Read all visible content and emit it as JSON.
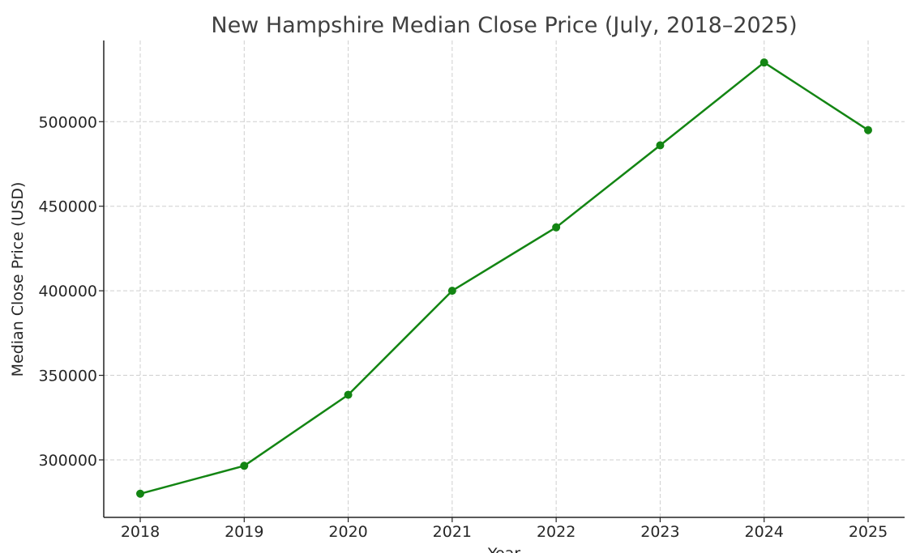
{
  "chart_data": {
    "type": "line",
    "title": "New Hampshire Median Close Price (July, 2018–2025)",
    "xlabel": "Year",
    "ylabel": "Median Close Price (USD)",
    "x": [
      2018,
      2019,
      2020,
      2021,
      2022,
      2023,
      2024,
      2025
    ],
    "x_tick_labels": [
      "2018",
      "2019",
      "2020",
      "2021",
      "2022",
      "2023",
      "2024",
      "2025"
    ],
    "y_ticks": [
      300000,
      350000,
      400000,
      450000,
      500000
    ],
    "y_tick_labels": [
      "300000",
      "350000",
      "400000",
      "450000",
      "500000"
    ],
    "ylim": [
      266000,
      548000
    ],
    "series": [
      {
        "values": [
          280000,
          296500,
          338500,
          400000,
          437500,
          486000,
          535000,
          495000
        ],
        "color": "#138513"
      }
    ],
    "grid": true,
    "legend": "none"
  }
}
